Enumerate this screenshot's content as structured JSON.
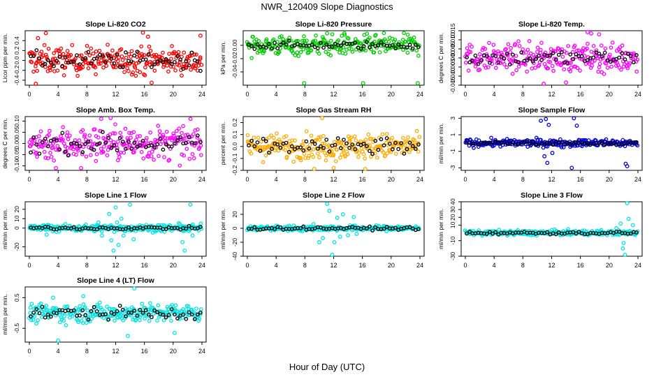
{
  "figure": {
    "title": "NWR_120409  Slope Diagnostics",
    "xlabel": "Hour of Day (UTC)"
  },
  "chart_data": [
    {
      "type": "scatter",
      "title": "Slope Li-820 CO2",
      "ylabel": "Licor ppm per min.",
      "xlim": [
        0,
        24
      ],
      "xticks": [
        0,
        4,
        8,
        12,
        16,
        20,
        24
      ],
      "ylim": [
        -0.5,
        0.6
      ],
      "yticks": [
        -0.4,
        -0.2,
        0.0,
        0.2,
        0.4
      ],
      "ytick_labels": [
        "-0.4",
        "-0.2",
        "0.0",
        "0.2",
        "0.4"
      ],
      "color": "#ff0000",
      "spread": 0.18,
      "outlier_points": [
        [
          0.9,
          -0.5
        ],
        [
          1.2,
          0.45
        ],
        [
          2.3,
          0.55
        ],
        [
          15.8,
          0.56
        ],
        [
          16.5,
          0.48
        ],
        [
          17.0,
          -0.45
        ],
        [
          23.8,
          0.5
        ]
      ],
      "black_spread": 0.12
    },
    {
      "type": "scatter",
      "title": "Slope Li-820 Pressure",
      "ylabel": "kPa per min.",
      "xlim": [
        0,
        24
      ],
      "xticks": [
        0,
        4,
        8,
        12,
        16,
        20,
        24
      ],
      "ylim": [
        -0.06,
        0.022
      ],
      "yticks": [
        -0.04,
        -0.02,
        0.0
      ],
      "ytick_labels": [
        "-0.04",
        "-0.02",
        "0.00"
      ],
      "color": "#00cc00",
      "spread": 0.01,
      "outlier_points": [
        [
          7.9,
          -0.057
        ],
        [
          16.1,
          -0.057
        ],
        [
          23.7,
          -0.057
        ],
        [
          11.1,
          0.018
        ],
        [
          13.5,
          0.018
        ]
      ],
      "black_spread": 0.004
    },
    {
      "type": "scatter",
      "title": "Slope Li-820 Temp.",
      "ylabel": "degrees C per min.",
      "xlim": [
        0,
        24
      ],
      "xticks": [
        0,
        4,
        8,
        12,
        16,
        20,
        24
      ],
      "ylim": [
        -0.015,
        0.015
      ],
      "yticks": [
        -0.015,
        -0.01,
        -0.005,
        0.0,
        0.005,
        0.01,
        0.015
      ],
      "ytick_labels": [
        "-0.015",
        "-0.010",
        "-0.005",
        "0.000",
        "0.005",
        "0.010",
        "0.015"
      ],
      "color": "#ff00ff",
      "spread": 0.005,
      "outlier_points": [
        [
          10.9,
          -0.0145
        ],
        [
          17.0,
          0.0145
        ],
        [
          17.5,
          0.0135
        ],
        [
          18.6,
          0.013
        ],
        [
          14.0,
          -0.0135
        ]
      ],
      "black_spread": 0.003
    },
    {
      "type": "scatter",
      "title": "Slope Amb. Box Temp.",
      "ylabel": "degrees C per min.",
      "xlim": [
        0,
        24
      ],
      "xticks": [
        0,
        4,
        8,
        12,
        16,
        20,
        24
      ],
      "ylim": [
        -0.12,
        0.12
      ],
      "yticks": [
        -0.1,
        -0.05,
        0.0,
        0.05,
        0.1
      ],
      "ytick_labels": [
        "-0.10",
        "-0.05",
        "0.00",
        "0.05",
        "0.10"
      ],
      "color": "#ff00ff",
      "spread": 0.05,
      "outlier_points": [
        [
          11.3,
          0.12
        ],
        [
          3.7,
          -0.11
        ],
        [
          7.2,
          -0.11
        ],
        [
          10.0,
          0.11
        ]
      ],
      "black_spread": 0.03
    },
    {
      "type": "scatter",
      "title": "Slope Gas Stream RH",
      "ylabel": "percent per min.",
      "xlim": [
        0,
        24
      ],
      "xticks": [
        0,
        4,
        8,
        12,
        16,
        20,
        24
      ],
      "ylim": [
        -0.2,
        0.25
      ],
      "yticks": [
        -0.2,
        -0.1,
        0.0,
        0.1,
        0.2
      ],
      "ytick_labels": [
        "-0.2",
        "-0.1",
        "0.0",
        "0.1",
        "0.2"
      ],
      "color": "#ffaa00",
      "spread": 0.07,
      "outlier_points": [
        [
          10.4,
          0.24
        ],
        [
          9.3,
          -0.2
        ],
        [
          16.4,
          -0.19
        ],
        [
          12.0,
          -0.18
        ]
      ],
      "black_spread": 0.05
    },
    {
      "type": "scatter",
      "title": "Slope Sample Flow",
      "ylabel": "ml/min per min.",
      "xlim": [
        0,
        24
      ],
      "xticks": [
        0,
        4,
        8,
        12,
        16,
        20,
        24
      ],
      "ylim": [
        -3.3,
        3.2
      ],
      "yticks": [
        -3,
        -1,
        1,
        3
      ],
      "ytick_labels": [
        "-3",
        "-1",
        "1",
        "3"
      ],
      "color": "#0000dd",
      "spread": 0.3,
      "outlier_points": [
        [
          10.5,
          2.7
        ],
        [
          11.2,
          2.9
        ],
        [
          11.6,
          2.2
        ],
        [
          15.1,
          3.0
        ],
        [
          15.5,
          2.1
        ],
        [
          14.8,
          -3.0
        ],
        [
          22.3,
          -2.5
        ],
        [
          22.5,
          -2.8
        ],
        [
          11.0,
          -1.6
        ],
        [
          11.4,
          -2.4
        ],
        [
          12.1,
          -1.2
        ]
      ],
      "black_spread": 0.15
    },
    {
      "type": "scatter",
      "title": "Slope Line 1 Flow",
      "ylabel": "ml/min per min.",
      "xlim": [
        0,
        24
      ],
      "xticks": [
        0,
        4,
        8,
        12,
        16,
        20,
        24
      ],
      "ylim": [
        -30,
        28
      ],
      "yticks": [
        -20,
        0,
        10,
        20
      ],
      "ytick_labels": [
        "-20",
        "0",
        "10",
        "20"
      ],
      "color": "#00e5e5",
      "spread": 2.5,
      "outlier_points": [
        [
          11.1,
          15
        ],
        [
          11.4,
          -13
        ],
        [
          11.7,
          -24
        ],
        [
          12.0,
          22
        ],
        [
          12.4,
          -18
        ],
        [
          12.8,
          10
        ],
        [
          13.1,
          -8
        ],
        [
          14.0,
          25
        ],
        [
          14.5,
          -12
        ],
        [
          21.3,
          -15
        ],
        [
          21.6,
          -24
        ],
        [
          22.4,
          25
        ],
        [
          22.7,
          -8
        ],
        [
          2.4,
          -7
        ],
        [
          2.7,
          3
        ],
        [
          9.6,
          6
        ],
        [
          10.1,
          -8
        ],
        [
          12.2,
          6
        ]
      ],
      "black_spread": 1.2
    },
    {
      "type": "scatter",
      "title": "Slope Line 2 Flow",
      "ylabel": "ml/min per min.",
      "xlim": [
        0,
        24
      ],
      "xticks": [
        0,
        4,
        8,
        12,
        16,
        20,
        24
      ],
      "ylim": [
        -40,
        38
      ],
      "yticks": [
        -40,
        -20,
        0,
        20
      ],
      "ytick_labels": [
        "-40",
        "-20",
        "0",
        "20"
      ],
      "color": "#00e5e5",
      "spread": 2.5,
      "outlier_points": [
        [
          11.1,
          35
        ],
        [
          11.4,
          25
        ],
        [
          11.8,
          -38
        ],
        [
          12.1,
          -20
        ],
        [
          12.5,
          15
        ],
        [
          12.9,
          -12
        ],
        [
          13.3,
          20
        ],
        [
          10.5,
          -14
        ],
        [
          10.0,
          -20
        ],
        [
          14.0,
          -10
        ],
        [
          14.8,
          16
        ],
        [
          15.2,
          -8
        ],
        [
          9.2,
          6
        ]
      ],
      "black_spread": 1.5
    },
    {
      "type": "scatter",
      "title": "Slope Line 3 Flow",
      "ylabel": "ml/min per min.",
      "xlim": [
        0,
        24
      ],
      "xticks": [
        0,
        4,
        8,
        12,
        16,
        20,
        24
      ],
      "ylim": [
        -30,
        40
      ],
      "yticks": [
        -30,
        -10,
        10,
        20,
        30,
        40
      ],
      "ytick_labels": [
        "-30",
        "-10",
        "10",
        "20",
        "30",
        "40"
      ],
      "color": "#00e5e5",
      "spread": 2.2,
      "outlier_points": [
        [
          21.6,
          12
        ],
        [
          21.9,
          -20
        ],
        [
          22.2,
          -29
        ],
        [
          22.5,
          39
        ],
        [
          22.7,
          18
        ],
        [
          23.3,
          10
        ],
        [
          21.0,
          6
        ],
        [
          22.0,
          -13
        ]
      ],
      "black_spread": 1.2
    },
    {
      "type": "scatter",
      "title": "Slope Line 4 (LT) Flow",
      "ylabel": "ml/min per min.",
      "xlim": [
        0,
        24
      ],
      "xticks": [
        0,
        4,
        8,
        12,
        16,
        20,
        24
      ],
      "ylim": [
        -0.95,
        0.85
      ],
      "yticks": [
        -0.5,
        0.5
      ],
      "ytick_labels": [
        "-0.5",
        "0.5"
      ],
      "color": "#00e5e5",
      "spread": 0.2,
      "outlier_points": [
        [
          4.0,
          -0.9
        ],
        [
          14.6,
          0.8
        ],
        [
          13.7,
          -0.75
        ],
        [
          20.2,
          -0.65
        ],
        [
          3.3,
          0.5
        ],
        [
          7.5,
          0.55
        ]
      ],
      "black_spread": 0.15
    }
  ]
}
